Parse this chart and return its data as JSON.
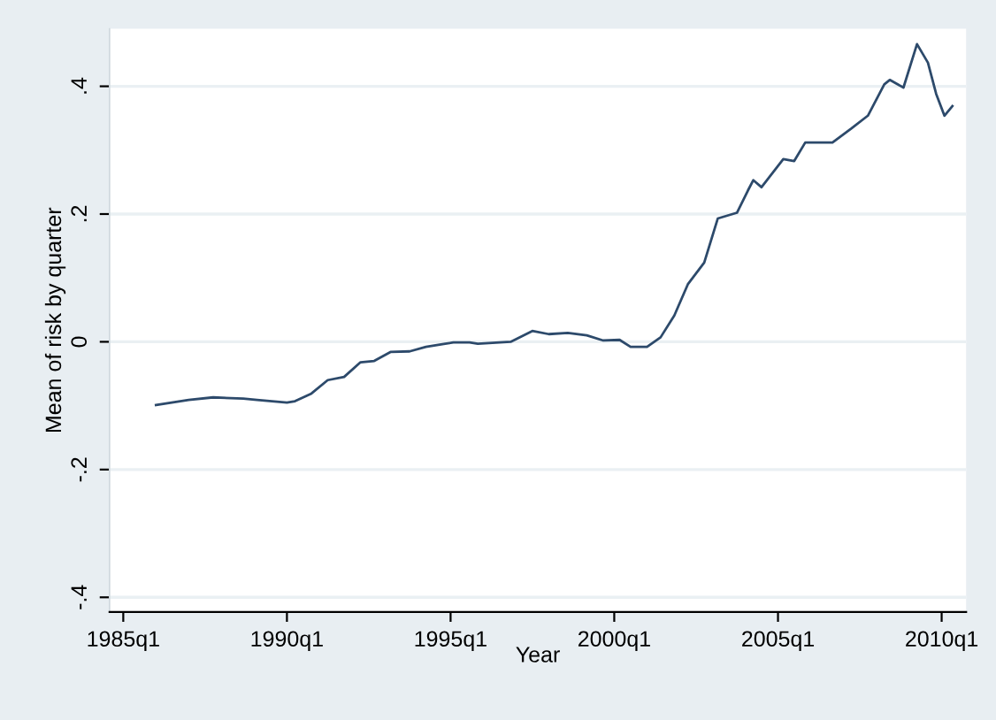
{
  "chart_data": {
    "type": "line",
    "xlabel": "Year",
    "ylabel": "Mean of risk by quarter",
    "x": [
      "1986-01",
      "1987-01",
      "1987-10",
      "1988-09",
      "1989-02",
      "1990-01",
      "1990-04",
      "1990-10",
      "1991-04",
      "1991-10",
      "1992-04",
      "1992-09",
      "1993-03",
      "1993-10",
      "1994-04",
      "1994-11",
      "1995-02",
      "1995-08",
      "1995-11",
      "1996-11",
      "1997-07",
      "1998-01",
      "1998-08",
      "1999-03",
      "1999-09",
      "2000-03",
      "2000-07",
      "2001-01",
      "2001-06",
      "2001-11",
      "2002-04",
      "2002-10",
      "2003-03",
      "2003-10",
      "2004-02",
      "2004-04",
      "2004-07",
      "2005-03",
      "2005-07",
      "2005-11",
      "2006-09",
      "2007-04",
      "2007-10",
      "2008-04",
      "2008-06",
      "2008-11",
      "2009-04",
      "2009-08",
      "2009-11",
      "2010-02",
      "2010-05"
    ],
    "series": [
      {
        "color": "#2d4a6b",
        "values": [
          -0.099,
          -0.091,
          -0.087,
          -0.089,
          -0.091,
          -0.095,
          -0.093,
          -0.081,
          -0.06,
          -0.055,
          -0.032,
          -0.03,
          -0.016,
          -0.015,
          -0.008,
          -0.003,
          -0.001,
          -0.001,
          -0.003,
          0.0,
          0.017,
          0.012,
          0.014,
          0.01,
          0.002,
          0.003,
          -0.008,
          -0.008,
          0.007,
          0.041,
          0.09,
          0.124,
          0.193,
          0.202,
          0.237,
          0.253,
          0.242,
          0.286,
          0.283,
          0.312,
          0.312,
          0.334,
          0.354,
          0.403,
          0.41,
          0.398,
          0.466,
          0.437,
          0.388,
          0.354,
          0.369
        ]
      }
    ],
    "xlim": [
      "1984-08",
      "2010-10"
    ],
    "ylim": [
      -0.423,
      0.49
    ],
    "xticks": [
      {
        "value": "1985-01",
        "label": "1985q1"
      },
      {
        "value": "1990-01",
        "label": "1990q1"
      },
      {
        "value": "1995-01",
        "label": "1995q1"
      },
      {
        "value": "2000-01",
        "label": "2000q1"
      },
      {
        "value": "2005-01",
        "label": "2005q1"
      },
      {
        "value": "2010-01",
        "label": "2010q1"
      }
    ],
    "yticks": [
      {
        "value": -0.4,
        "label": "-.4"
      },
      {
        "value": -0.2,
        "label": "-.2"
      },
      {
        "value": 0,
        "label": "0"
      },
      {
        "value": 0.2,
        "label": ".2"
      },
      {
        "value": 0.4,
        "label": ".4"
      }
    ],
    "grid": "y",
    "marker": "none",
    "line_style": "solid"
  }
}
